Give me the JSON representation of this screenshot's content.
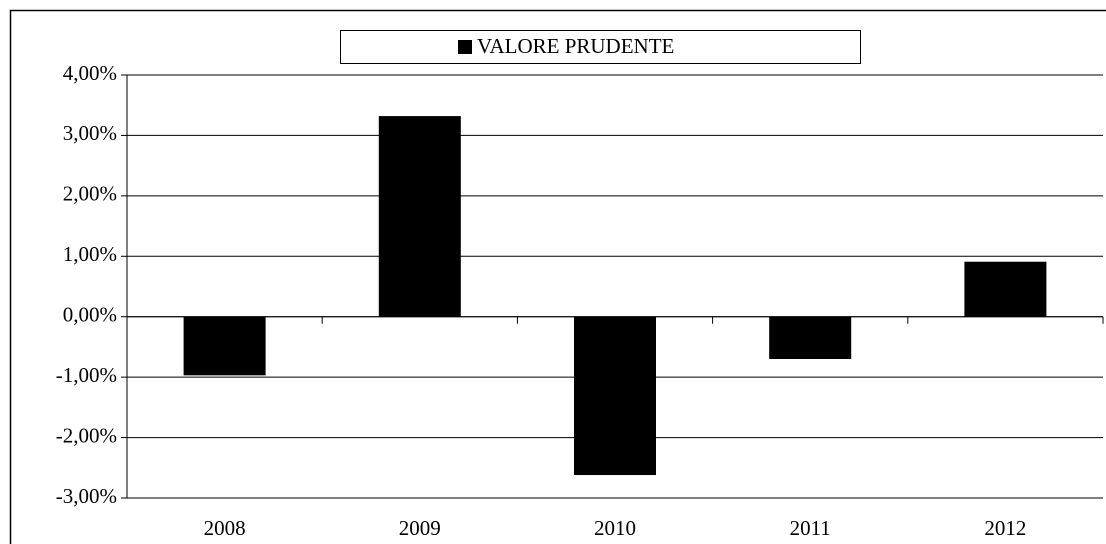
{
  "chart_data": {
    "type": "bar",
    "categories": [
      "2008",
      "2009",
      "2010",
      "2011",
      "2012"
    ],
    "series": [
      {
        "name": "VALORE PRUDENTE",
        "color": "#000000",
        "values": [
          -0.97,
          3.32,
          -2.62,
          -0.7,
          0.91
        ]
      }
    ],
    "ylim": [
      -3,
      4
    ],
    "yticks": [
      {
        "value": 4,
        "label": "4,00%"
      },
      {
        "value": 3,
        "label": "3,00%"
      },
      {
        "value": 2,
        "label": "2,00%"
      },
      {
        "value": 1,
        "label": "1,00%"
      },
      {
        "value": 0,
        "label": "0,00%"
      },
      {
        "value": -1,
        "label": "-1,00%"
      },
      {
        "value": -2,
        "label": "-2,00%"
      },
      {
        "value": -3,
        "label": "-3,00%"
      }
    ],
    "grid": true,
    "legend": "top"
  }
}
